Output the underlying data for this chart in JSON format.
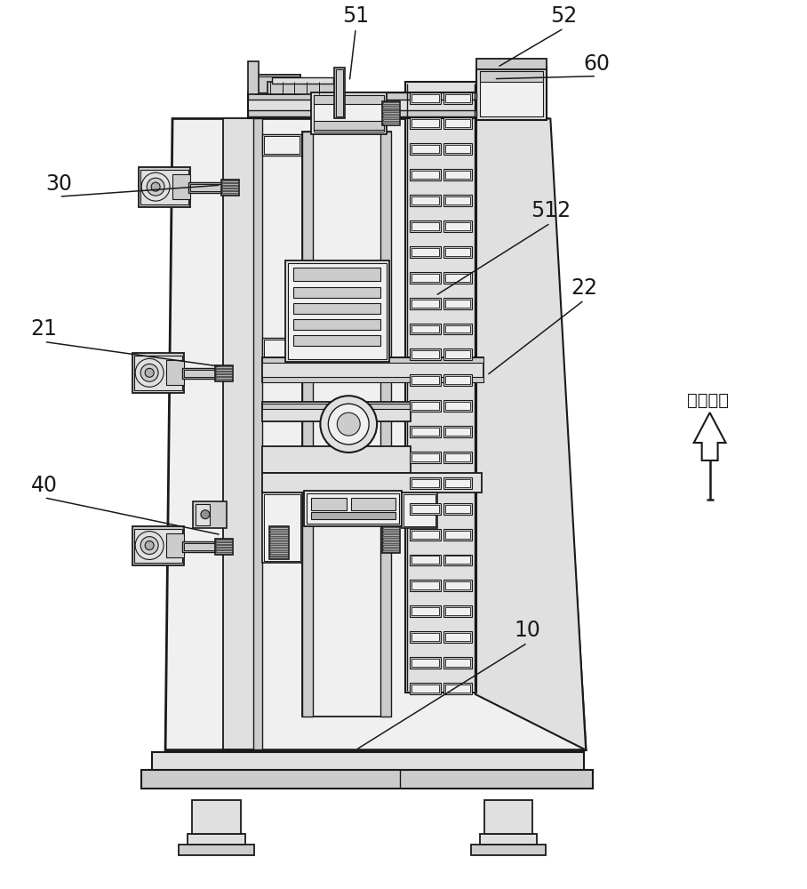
{
  "bg": "#ffffff",
  "lc": "#1a1a1a",
  "g1": "#f0f0f0",
  "g2": "#e0e0e0",
  "g3": "#cccccc",
  "g4": "#b0b0b0",
  "g5": "#909090",
  "g6": "#707070",
  "chinese": "竞直方向",
  "figw": 9.08,
  "figh": 10.0,
  "dpi": 100
}
